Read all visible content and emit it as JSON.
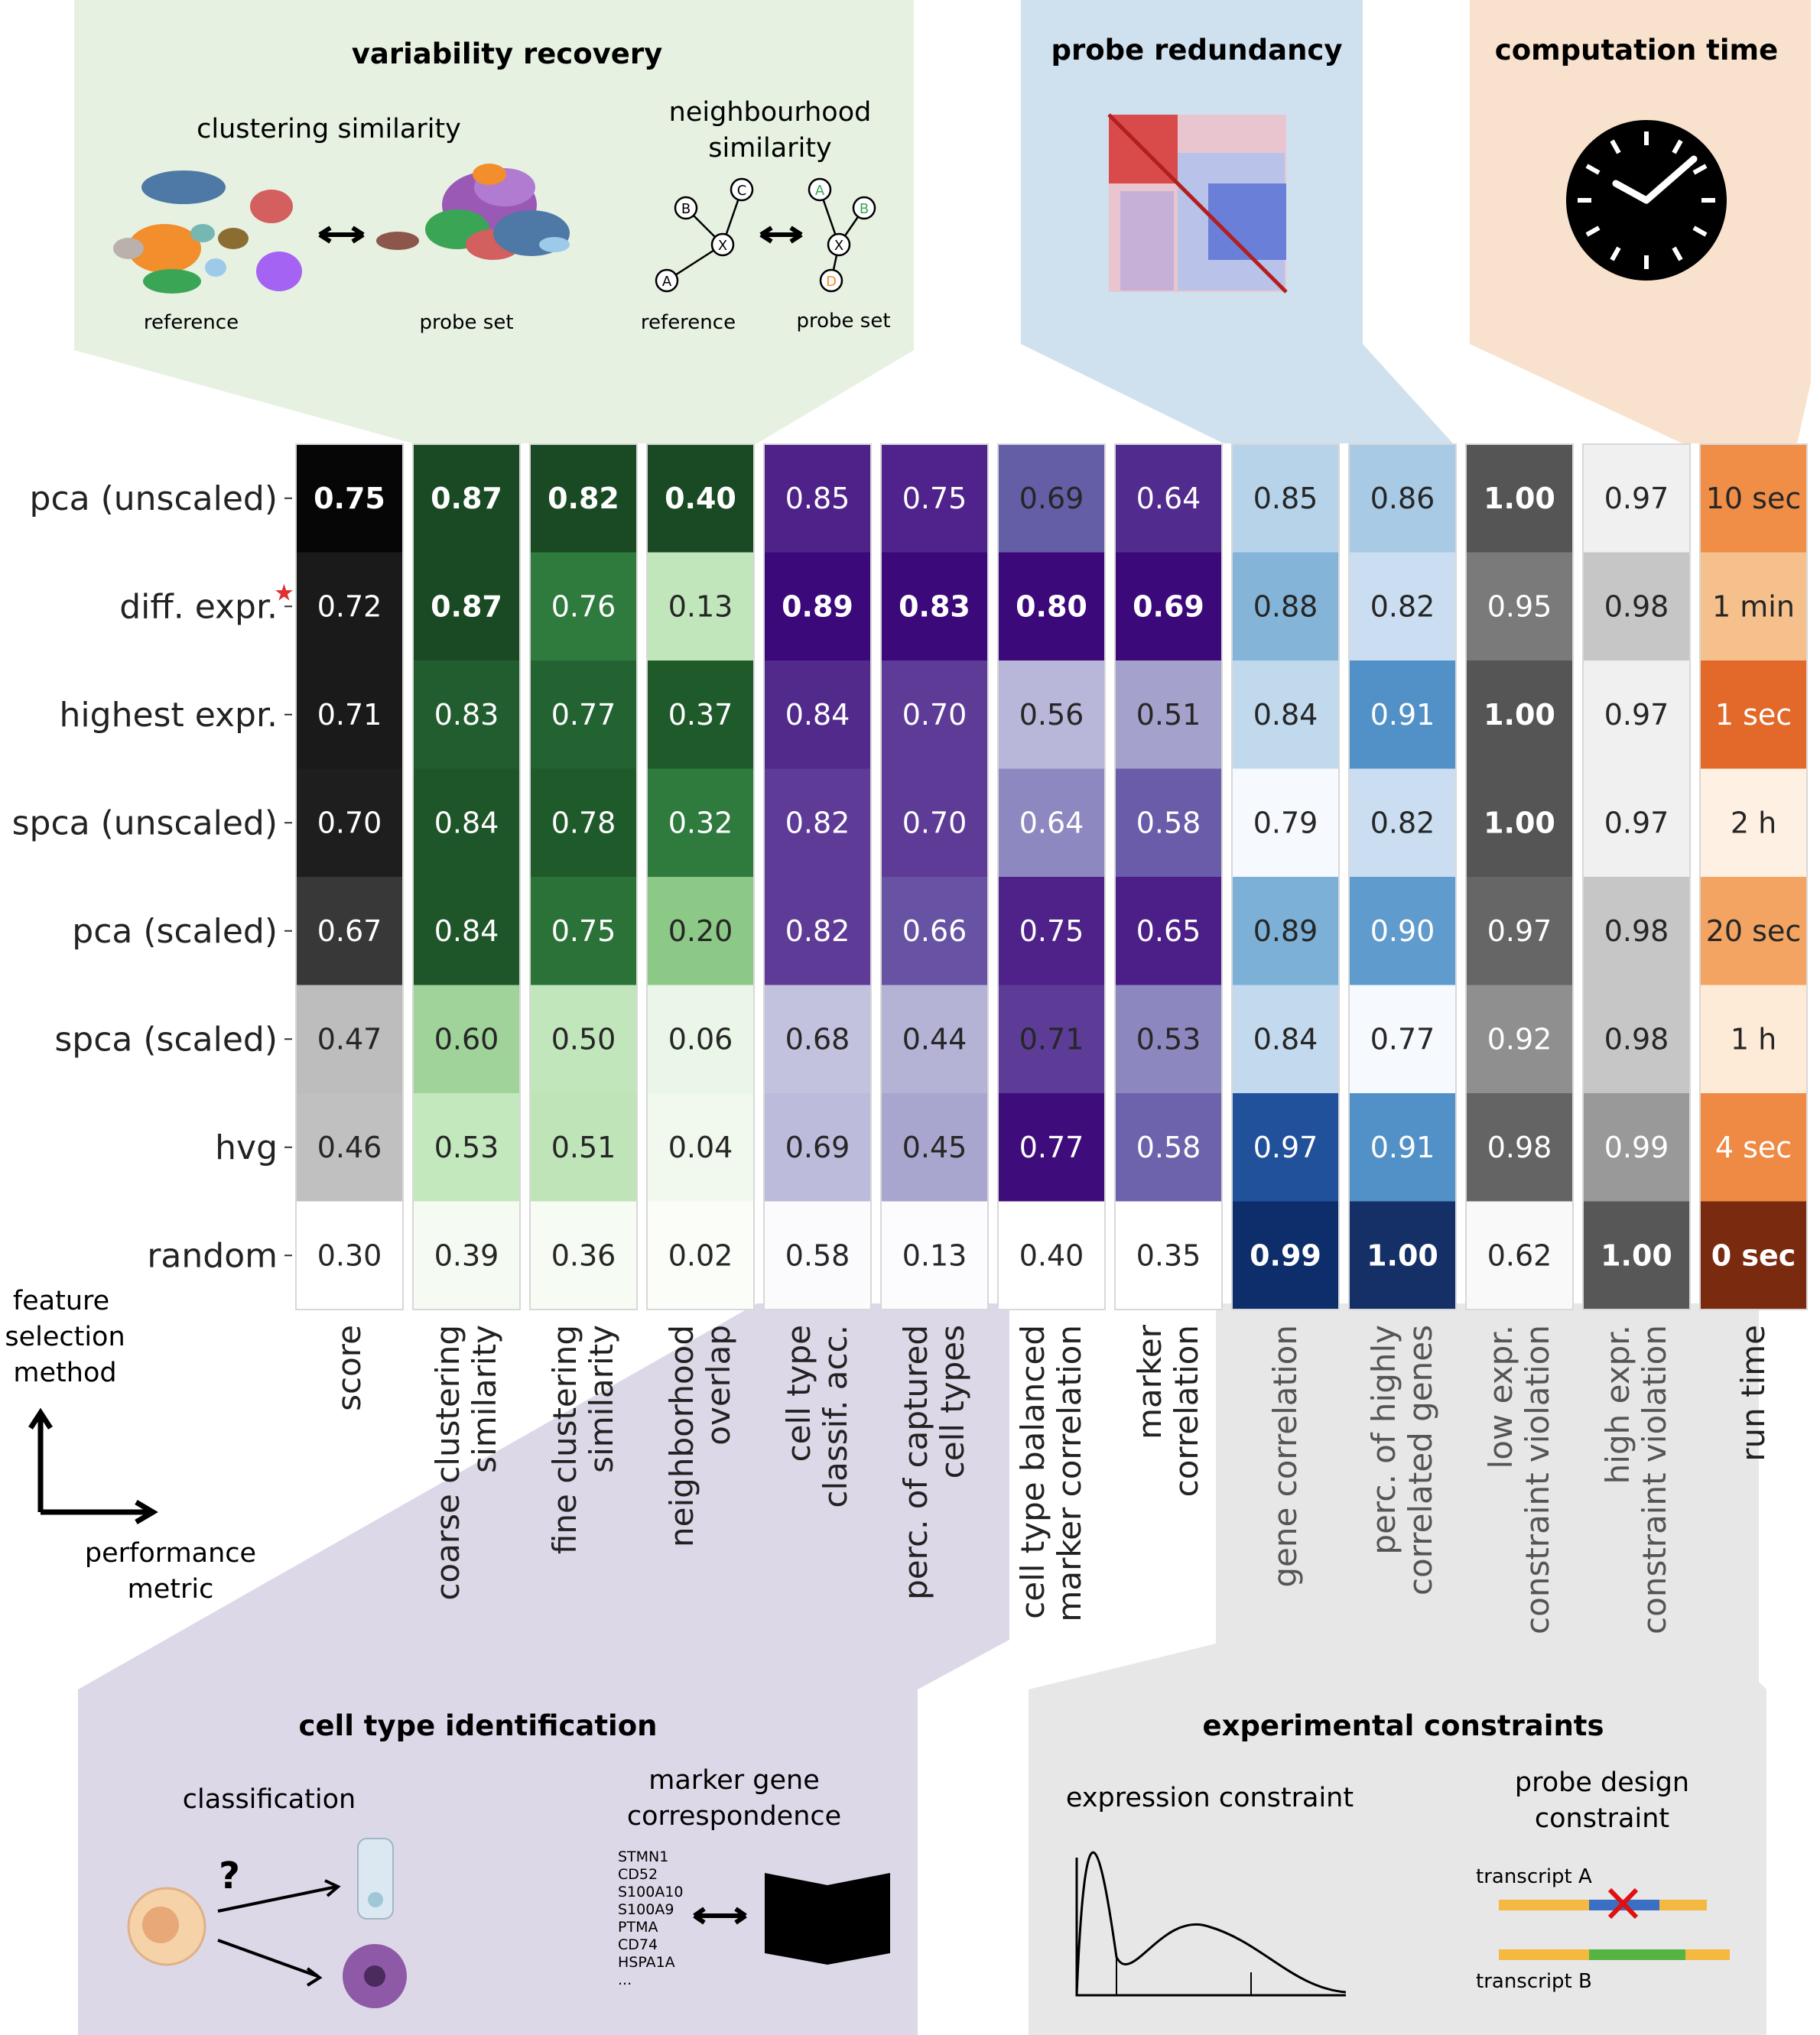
{
  "panels": {
    "variability": {
      "title": "variability recovery",
      "clustering": "clustering similarity",
      "neighbourhood": [
        "neighbourhood",
        "similarity"
      ],
      "reference": "reference",
      "probe_set": "probe set",
      "nodes": {
        "left": [
          "B",
          "C",
          "A",
          "X"
        ],
        "right": [
          "A",
          "B",
          "X",
          "D"
        ]
      }
    },
    "redundancy": {
      "title": "probe redundancy"
    },
    "time": {
      "title": "computation time"
    },
    "celltype": {
      "title": "cell type identification",
      "classification": "classification",
      "question": "?",
      "marker": [
        "marker gene",
        "correspondence"
      ],
      "genes": [
        "STMN1",
        "CD52",
        "S100A10",
        "S100A9",
        "PTMA",
        "CD74",
        "HSPA1A",
        "..."
      ]
    },
    "constraints": {
      "title": "experimental constraints",
      "expression": "expression constraint",
      "probe": [
        "probe design",
        "constraint"
      ],
      "transcript_a": "transcript A",
      "transcript_b": "transcript B"
    }
  },
  "axis_note": {
    "feature": [
      "feature",
      "selection",
      "method"
    ],
    "metric": [
      "performance",
      "metric"
    ]
  },
  "chart_data": {
    "type": "heatmap",
    "rows": [
      "pca (unscaled)",
      "diff. expr.",
      "highest expr.",
      "spca (unscaled)",
      "pca (scaled)",
      "spca (scaled)",
      "hvg",
      "random"
    ],
    "starred_row": "diff. expr.",
    "columns": [
      {
        "label": [
          "score"
        ],
        "group": "score",
        "values": [
          0.75,
          0.72,
          0.71,
          0.7,
          0.67,
          0.47,
          0.46,
          0.3
        ]
      },
      {
        "label": [
          "coarse clustering",
          "similarity"
        ],
        "group": "variability",
        "values": [
          0.87,
          0.87,
          0.83,
          0.84,
          0.84,
          0.6,
          0.53,
          0.39
        ]
      },
      {
        "label": [
          "fine clustering",
          "similarity"
        ],
        "group": "variability",
        "values": [
          0.82,
          0.76,
          0.77,
          0.78,
          0.75,
          0.5,
          0.51,
          0.36
        ]
      },
      {
        "label": [
          "neighborhood",
          "overlap"
        ],
        "group": "variability",
        "values": [
          0.4,
          0.13,
          0.37,
          0.32,
          0.2,
          0.06,
          0.04,
          0.02
        ]
      },
      {
        "label": [
          "cell type",
          "classif. acc."
        ],
        "group": "celltype",
        "values": [
          0.85,
          0.89,
          0.84,
          0.82,
          0.82,
          0.68,
          0.69,
          0.58
        ]
      },
      {
        "label": [
          "perc. of captured",
          "cell types"
        ],
        "group": "celltype",
        "values": [
          0.75,
          0.83,
          0.7,
          0.7,
          0.66,
          0.44,
          0.45,
          0.13
        ]
      },
      {
        "label": [
          "cell type balanced",
          "marker correlation"
        ],
        "group": "celltype",
        "values": [
          0.69,
          0.8,
          0.56,
          0.64,
          0.75,
          0.71,
          0.77,
          0.4
        ]
      },
      {
        "label": [
          "marker",
          "correlation"
        ],
        "group": "celltype",
        "values": [
          0.64,
          0.69,
          0.51,
          0.58,
          0.65,
          0.53,
          0.58,
          0.35
        ]
      },
      {
        "label": [
          "gene correlation"
        ],
        "group": "redundancy",
        "values": [
          0.85,
          0.88,
          0.84,
          0.79,
          0.89,
          0.84,
          0.97,
          0.99
        ]
      },
      {
        "label": [
          "perc. of highly",
          "correlated genes"
        ],
        "group": "redundancy",
        "values": [
          0.86,
          0.82,
          0.91,
          0.82,
          0.9,
          0.77,
          0.91,
          1.0
        ]
      },
      {
        "label": [
          "low expr.",
          "constraint violation"
        ],
        "group": "constraints",
        "values": [
          1.0,
          0.95,
          1.0,
          1.0,
          0.97,
          0.92,
          0.98,
          0.62
        ]
      },
      {
        "label": [
          "high expr.",
          "constraint violation"
        ],
        "group": "constraints",
        "values": [
          0.97,
          0.98,
          0.97,
          0.97,
          0.98,
          0.98,
          0.99,
          1.0
        ]
      },
      {
        "label": [
          "run time"
        ],
        "group": "time",
        "values": [
          "10 sec",
          "1 min",
          "1 sec",
          "2 h",
          "20 sec",
          "1 h",
          "4 sec",
          "0 sec"
        ]
      }
    ],
    "bold_cells": [
      [
        0,
        0
      ],
      [
        0,
        1
      ],
      [
        1,
        1
      ],
      [
        0,
        2
      ],
      [
        0,
        3
      ],
      [
        1,
        4
      ],
      [
        1,
        5
      ],
      [
        1,
        6
      ],
      [
        1,
        7
      ],
      [
        7,
        8
      ],
      [
        7,
        9
      ],
      [
        0,
        10
      ],
      [
        2,
        10
      ],
      [
        3,
        10
      ],
      [
        7,
        11
      ],
      [
        7,
        12
      ]
    ],
    "colors": {
      "score": [
        "#060606",
        "#1a1a1a",
        "#1a1a1a",
        "#1e1e1e",
        "#383838",
        "#bdbdbd",
        "#c0c0c0",
        "#ffffff"
      ],
      "col1": [
        "#1a4a23",
        "#1a4a23",
        "#215d2e",
        "#1e5529",
        "#1e5529",
        "#9fd39a",
        "#c4e8be",
        "#f5fbf3"
      ],
      "col2": [
        "#1a4a23",
        "#2f7a3d",
        "#236331",
        "#1f5a2b",
        "#2a7238",
        "#c2e6bc",
        "#bee4b8",
        "#f6fbf4"
      ],
      "col3": [
        "#1a4a23",
        "#c2e6bc",
        "#1f5a2b",
        "#2f7a3d",
        "#8cc987",
        "#eaf6e7",
        "#f1f9ee",
        "#fafdf8"
      ],
      "col4": [
        "#4e2288",
        "#3c097a",
        "#522a8c",
        "#5e3b96",
        "#5e3b96",
        "#c3c2de",
        "#bcbbdb",
        "#fbfafd"
      ],
      "col5": [
        "#4f238b",
        "#3c097a",
        "#5e3b96",
        "#5e3b96",
        "#6752a3",
        "#b4b3d6",
        "#a8a6cf",
        "#fcfbfd"
      ],
      "col6": [
        "#645ea6",
        "#3c097a",
        "#b9b7d9",
        "#8d88c0",
        "#4e2288",
        "#5d3c97",
        "#3f0d7b",
        "#ffffff"
      ],
      "col7": [
        "#512b8e",
        "#3c097a",
        "#a4a1cc",
        "#6a5ca9",
        "#4c1f88",
        "#8c87bf",
        "#6c63ac",
        "#ffffff"
      ],
      "col8": [
        "#b7d3ea",
        "#84b5d8",
        "#c1d9ed",
        "#f6f9fe",
        "#7cb0d6",
        "#c3daee",
        "#21519b",
        "#0d2e6b"
      ],
      "col9": [
        "#a8cae4",
        "#cbdef1",
        "#5191c7",
        "#cbdef1",
        "#5f9bcc",
        "#f6f9fd",
        "#5191c7",
        "#143067"
      ],
      "col10": [
        "#555555",
        "#7a7a7a",
        "#555555",
        "#555555",
        "#666666",
        "#8f8f8f",
        "#646464",
        "#f9f9f9"
      ],
      "col11": [
        "#f0f0f0",
        "#c6c6c6",
        "#f0f0f0",
        "#f0f0f0",
        "#c6c6c6",
        "#c6c6c6",
        "#999999",
        "#575757"
      ],
      "col12": [
        "#f08d47",
        "#f6c08c",
        "#e2692a",
        "#fef1e3",
        "#f3a362",
        "#fdebd8",
        "#ee8a44",
        "#7a2b0f"
      ]
    },
    "white_text_cells": [
      [
        0,
        0
      ],
      [
        1,
        0
      ],
      [
        2,
        0
      ],
      [
        3,
        0
      ],
      [
        4,
        0
      ],
      [
        0,
        1
      ],
      [
        1,
        1
      ],
      [
        2,
        1
      ],
      [
        3,
        1
      ],
      [
        4,
        1
      ],
      [
        0,
        2
      ],
      [
        1,
        2
      ],
      [
        2,
        2
      ],
      [
        3,
        2
      ],
      [
        4,
        2
      ],
      [
        0,
        3
      ],
      [
        2,
        3
      ],
      [
        3,
        3
      ],
      [
        0,
        4
      ],
      [
        1,
        4
      ],
      [
        2,
        4
      ],
      [
        3,
        4
      ],
      [
        4,
        4
      ],
      [
        0,
        5
      ],
      [
        1,
        5
      ],
      [
        2,
        5
      ],
      [
        3,
        5
      ],
      [
        4,
        5
      ],
      [
        1,
        6
      ],
      [
        3,
        6
      ],
      [
        4,
        6
      ],
      [
        6,
        6
      ],
      [
        0,
        7
      ],
      [
        1,
        7
      ],
      [
        3,
        7
      ],
      [
        4,
        7
      ],
      [
        6,
        7
      ],
      [
        6,
        8
      ],
      [
        7,
        8
      ],
      [
        2,
        9
      ],
      [
        4,
        9
      ],
      [
        6,
        9
      ],
      [
        7,
        9
      ],
      [
        0,
        10
      ],
      [
        1,
        10
      ],
      [
        2,
        10
      ],
      [
        3,
        10
      ],
      [
        4,
        10
      ],
      [
        5,
        10
      ],
      [
        6,
        10
      ],
      [
        6,
        11
      ],
      [
        7,
        11
      ],
      [
        2,
        12
      ],
      [
        6,
        12
      ],
      [
        7,
        12
      ]
    ]
  }
}
